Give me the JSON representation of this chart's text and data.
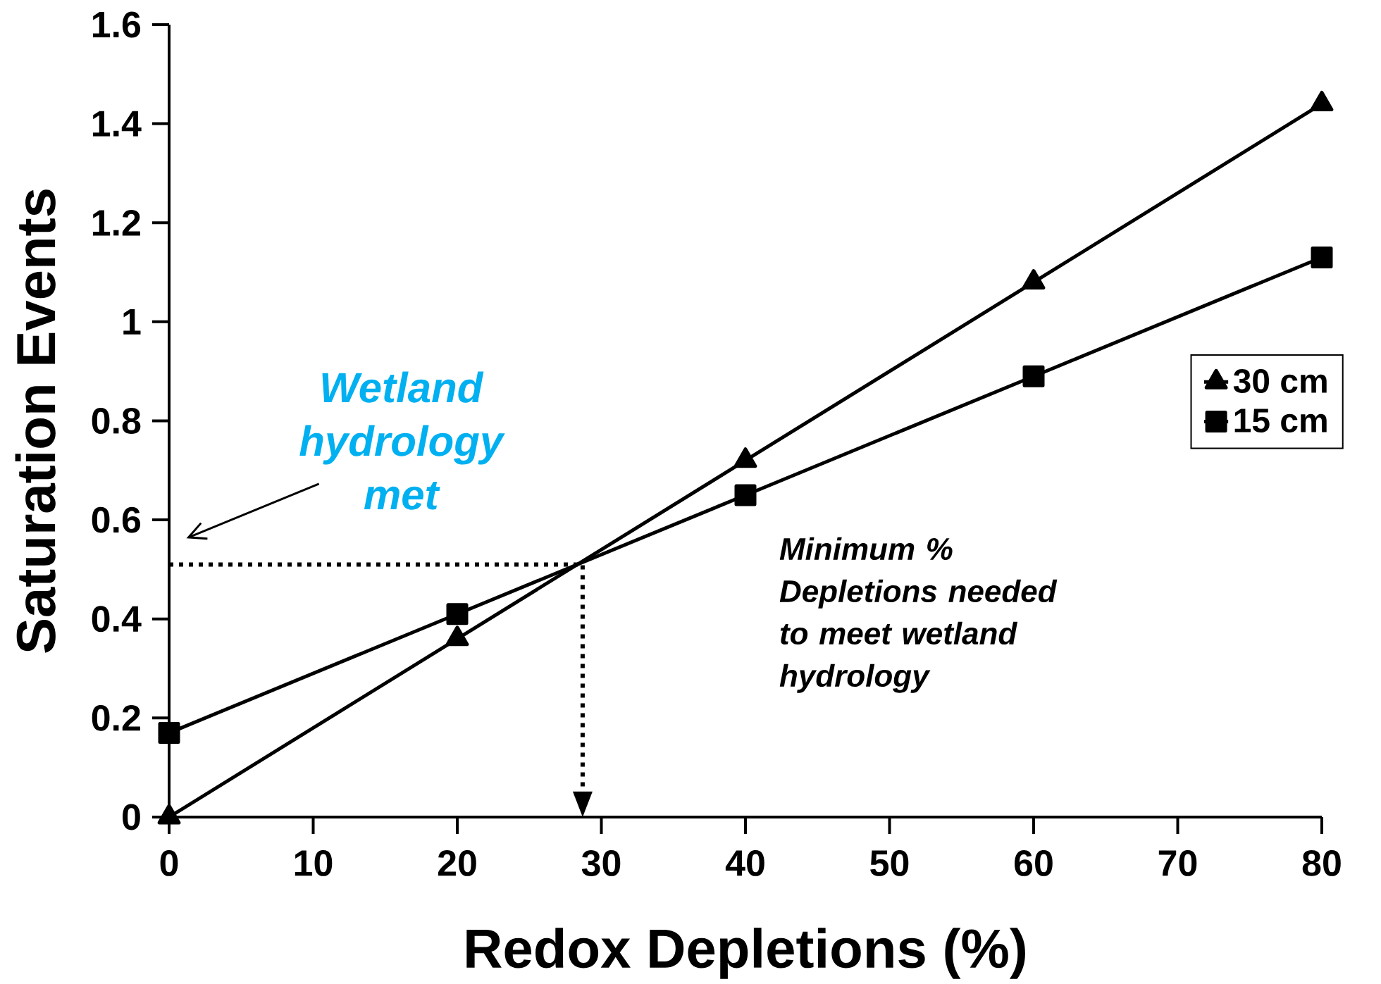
{
  "chart_data": {
    "type": "line",
    "xlabel": "Redox Depletions (%)",
    "ylabel": "Saturation Events",
    "xlim": [
      0,
      80
    ],
    "ylim": [
      0,
      1.6
    ],
    "xticks": [
      0,
      10,
      20,
      30,
      40,
      50,
      60,
      70,
      80
    ],
    "yticks": [
      0,
      0.2,
      0.4,
      0.6,
      0.8,
      1,
      1.2,
      1.4,
      1.6
    ],
    "grid": false,
    "legend": "right",
    "line_style": "solid",
    "series": [
      {
        "name": "30 cm",
        "color": "#000000",
        "marker": "triangle",
        "x": [
          0,
          20,
          40,
          60,
          80
        ],
        "values": [
          0,
          0.36,
          0.72,
          1.08,
          1.44
        ]
      },
      {
        "name": "15 cm",
        "color": "#000000",
        "marker": "square",
        "x": [
          0,
          20,
          40,
          60,
          80
        ],
        "values": [
          0.17,
          0.41,
          0.65,
          0.89,
          1.13
        ]
      },
      {
        "color": "#000000",
        "marker": "none",
        "line_style": "dotted",
        "x": [
          0,
          28.7,
          28.7
        ],
        "values": [
          0.51,
          0.51,
          0.06
        ]
      }
    ],
    "annotations": [
      "Wetland hydrology met",
      "Minimum % Depletions needed to meet wetland hydrology"
    ]
  }
}
